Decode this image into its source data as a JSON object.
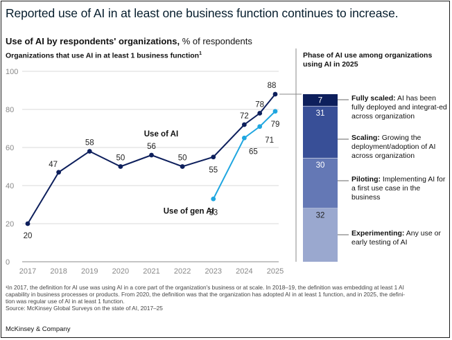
{
  "title": "Reported use of AI in at least one business function continues to increase.",
  "subtitle": {
    "bold": "Use of AI by respondents' organizations,",
    "rest": " % of respondents"
  },
  "left_chart_label": "Organizations that use AI in at least 1 business function",
  "left_chart_label_sup": "1",
  "right_chart_label": "Phase of AI use among organizations using AI in 2025",
  "footnote_lines": [
    "¹In 2017, the definition for AI use was using AI in a core part of the organization's business or at scale. In 2018–19, the definition was embedding at least 1 AI",
    "capability in business processes or products. From 2020, the definition was that the organization has adopted AI in at least 1 function, and in 2025, the defini-",
    "tion was regular use of AI in at least 1 function.",
    "Source: McKinsey Global Surveys on the state of AI, 2017–25"
  ],
  "brand": "McKinsey & Company",
  "chart_data": [
    {
      "type": "line",
      "ylim": [
        0,
        100
      ],
      "yticks": [
        0,
        20,
        40,
        60,
        80,
        100
      ],
      "x_ticks": [
        "2017",
        "2018",
        "2019",
        "2020",
        "2021",
        "2022",
        "2023",
        "2024",
        "2025"
      ],
      "grid": true,
      "series": [
        {
          "name": "Use of AI",
          "color": "#0d1f5c",
          "points": [
            {
              "x": 2017,
              "y": 20,
              "label": "20"
            },
            {
              "x": 2018,
              "y": 47,
              "label": "47"
            },
            {
              "x": 2019,
              "y": 58,
              "label": "58"
            },
            {
              "x": 2020,
              "y": 50,
              "label": "50"
            },
            {
              "x": 2021,
              "y": 56,
              "label": "56"
            },
            {
              "x": 2022,
              "y": 50,
              "label": "50"
            },
            {
              "x": 2023,
              "y": 55,
              "label": "55"
            },
            {
              "x": 2024,
              "y": 72,
              "label": "72"
            },
            {
              "x": 2024.5,
              "y": 78,
              "label": "78"
            },
            {
              "x": 2025,
              "y": 88,
              "label": "88"
            }
          ]
        },
        {
          "name": "Use of gen AI",
          "color": "#1fa6e0",
          "points": [
            {
              "x": 2023,
              "y": 33,
              "label": "33"
            },
            {
              "x": 2024,
              "y": 65,
              "label": "65"
            },
            {
              "x": 2024.5,
              "y": 71,
              "label": "71"
            },
            {
              "x": 2025,
              "y": 79,
              "label": "79"
            }
          ]
        }
      ]
    },
    {
      "type": "bar",
      "stacked": true,
      "category": "2025",
      "segments": [
        {
          "value": 32,
          "label": "32",
          "color": "#9aa8cf",
          "name": "Experimenting:",
          "desc": "Any use or early testing of AI"
        },
        {
          "value": 30,
          "label": "30",
          "color": "#6478b5",
          "name": "Piloting:",
          "desc": "Implementing AI for a first use case in the business"
        },
        {
          "value": 31,
          "label": "31",
          "color": "#384f97",
          "name": "Scaling:",
          "desc": "Growing the deployment/adoption of AI across organization"
        },
        {
          "value": 7,
          "label": "7",
          "color": "#0d1f5c",
          "name": "Fully scaled:",
          "desc": "AI has been fully deployed and integrat-ed across organization"
        }
      ]
    }
  ]
}
